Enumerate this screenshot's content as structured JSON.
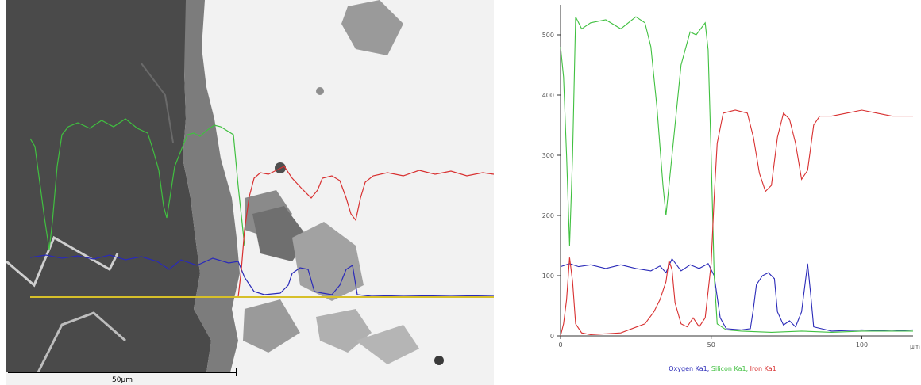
{
  "sem_image": {
    "scale_bar_label": "50µm",
    "colors": {
      "background": "#f2f2f2",
      "dark_phase": "#4a4a4a",
      "scan_line": "#d7c02a"
    }
  },
  "chart_data": {
    "type": "line",
    "title": "",
    "xlabel": "µm",
    "ylabel": "",
    "xlim": [
      0,
      117
    ],
    "ylim": [
      0,
      550
    ],
    "x_ticks": [
      0,
      50,
      100
    ],
    "y_ticks": [
      0,
      100,
      200,
      300,
      400,
      500
    ],
    "grid": false,
    "legend_position": "bottom",
    "legend_separator": ", ",
    "series": [
      {
        "name": "Oxygen Ka1",
        "color": "#2a2ab8",
        "points": [
          [
            0,
            115
          ],
          [
            3,
            120
          ],
          [
            6,
            115
          ],
          [
            10,
            118
          ],
          [
            15,
            112
          ],
          [
            20,
            118
          ],
          [
            25,
            112
          ],
          [
            30,
            108
          ],
          [
            33,
            116
          ],
          [
            35,
            105
          ],
          [
            37,
            128
          ],
          [
            40,
            108
          ],
          [
            43,
            118
          ],
          [
            46,
            112
          ],
          [
            49,
            120
          ],
          [
            51,
            100
          ],
          [
            53,
            30
          ],
          [
            55,
            12
          ],
          [
            60,
            10
          ],
          [
            63,
            12
          ],
          [
            64,
            45
          ],
          [
            65,
            85
          ],
          [
            67,
            100
          ],
          [
            69,
            105
          ],
          [
            71,
            95
          ],
          [
            72,
            40
          ],
          [
            74,
            18
          ],
          [
            76,
            25
          ],
          [
            78,
            15
          ],
          [
            80,
            40
          ],
          [
            82,
            120
          ],
          [
            83,
            70
          ],
          [
            84,
            15
          ],
          [
            90,
            8
          ],
          [
            100,
            10
          ],
          [
            110,
            8
          ],
          [
            117,
            10
          ]
        ]
      },
      {
        "name": "Silicon Ka1",
        "color": "#40c040",
        "points": [
          [
            0,
            480
          ],
          [
            1,
            430
          ],
          [
            2,
            300
          ],
          [
            3,
            150
          ],
          [
            4,
            300
          ],
          [
            5,
            530
          ],
          [
            7,
            510
          ],
          [
            10,
            520
          ],
          [
            15,
            525
          ],
          [
            20,
            510
          ],
          [
            25,
            530
          ],
          [
            28,
            520
          ],
          [
            30,
            480
          ],
          [
            32,
            380
          ],
          [
            34,
            250
          ],
          [
            35,
            200
          ],
          [
            36,
            250
          ],
          [
            38,
            350
          ],
          [
            40,
            450
          ],
          [
            43,
            505
          ],
          [
            45,
            500
          ],
          [
            48,
            520
          ],
          [
            49,
            475
          ],
          [
            50,
            300
          ],
          [
            51,
            100
          ],
          [
            52,
            20
          ],
          [
            55,
            10
          ],
          [
            60,
            8
          ],
          [
            70,
            6
          ],
          [
            80,
            8
          ],
          [
            90,
            6
          ],
          [
            100,
            8
          ],
          [
            117,
            8
          ]
        ]
      },
      {
        "name": "Iron Ka1",
        "color": "#d83030",
        "points": [
          [
            0,
            0
          ],
          [
            1,
            20
          ],
          [
            2,
            60
          ],
          [
            3,
            130
          ],
          [
            4,
            90
          ],
          [
            5,
            20
          ],
          [
            7,
            5
          ],
          [
            10,
            2
          ],
          [
            20,
            5
          ],
          [
            28,
            20
          ],
          [
            31,
            40
          ],
          [
            33,
            60
          ],
          [
            35,
            90
          ],
          [
            36,
            125
          ],
          [
            37,
            110
          ],
          [
            38,
            55
          ],
          [
            40,
            20
          ],
          [
            42,
            15
          ],
          [
            44,
            30
          ],
          [
            46,
            15
          ],
          [
            48,
            30
          ],
          [
            50,
            120
          ],
          [
            51,
            230
          ],
          [
            52,
            320
          ],
          [
            54,
            370
          ],
          [
            58,
            375
          ],
          [
            62,
            370
          ],
          [
            64,
            330
          ],
          [
            66,
            270
          ],
          [
            68,
            240
          ],
          [
            70,
            250
          ],
          [
            72,
            330
          ],
          [
            74,
            370
          ],
          [
            76,
            360
          ],
          [
            78,
            320
          ],
          [
            80,
            260
          ],
          [
            82,
            275
          ],
          [
            84,
            350
          ],
          [
            86,
            365
          ],
          [
            90,
            365
          ],
          [
            95,
            370
          ],
          [
            100,
            375
          ],
          [
            105,
            370
          ],
          [
            110,
            365
          ],
          [
            117,
            365
          ]
        ]
      }
    ]
  }
}
